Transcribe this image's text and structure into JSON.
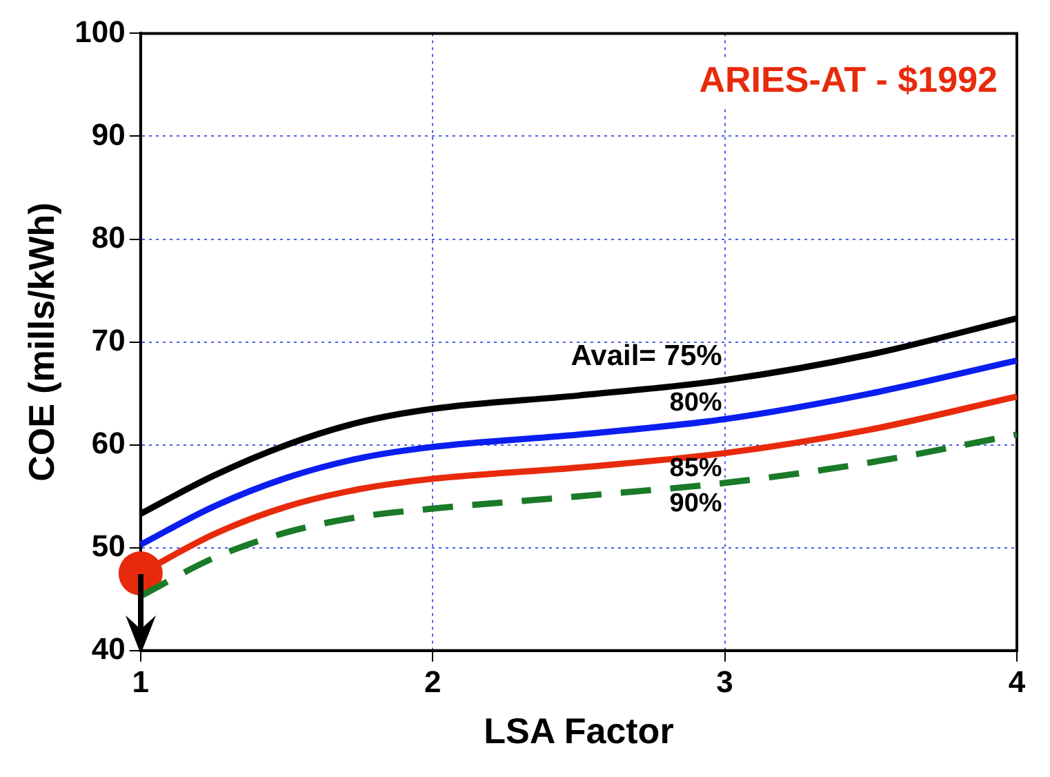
{
  "chart_data": {
    "type": "line",
    "title": "ARIES-AT - $1992",
    "xlabel": "LSA Factor",
    "ylabel": "COE (mills/kWh)",
    "x": [
      1,
      1.25,
      1.5,
      1.75,
      2,
      2.5,
      3,
      3.5,
      4
    ],
    "series": [
      {
        "name": "Avail= 75%",
        "color": "#000000",
        "values": [
          53.3,
          57,
          60,
          62.2,
          63.5,
          64.8,
          66.3,
          68.8,
          72.3
        ]
      },
      {
        "name": "80%",
        "color": "#0a1ef0",
        "values": [
          50.3,
          54,
          56.8,
          58.7,
          59.8,
          61,
          62.5,
          65,
          68.2
        ]
      },
      {
        "name": "85%",
        "color": "#e82a0c",
        "values": [
          47.5,
          51.3,
          54,
          55.7,
          56.7,
          57.8,
          59.2,
          61.5,
          64.7
        ]
      },
      {
        "name": "90%",
        "color": "#1a7a28",
        "values": [
          45.3,
          49,
          51.5,
          53,
          53.8,
          55,
          56.3,
          58.3,
          61
        ],
        "line_style": "dashed"
      },
      {
        "type": "scatter",
        "color": "#e82a0c",
        "x": [
          1
        ],
        "values": [
          47.5
        ],
        "marker": "circle"
      }
    ],
    "xlim": [
      1,
      4
    ],
    "xticks": [
      1,
      2,
      3,
      4
    ],
    "ylim": [
      40,
      100
    ],
    "yticks": [
      40,
      50,
      60,
      70,
      80,
      90,
      100
    ],
    "grid": true,
    "legend": false,
    "marker": "none",
    "line_style": "solid"
  }
}
